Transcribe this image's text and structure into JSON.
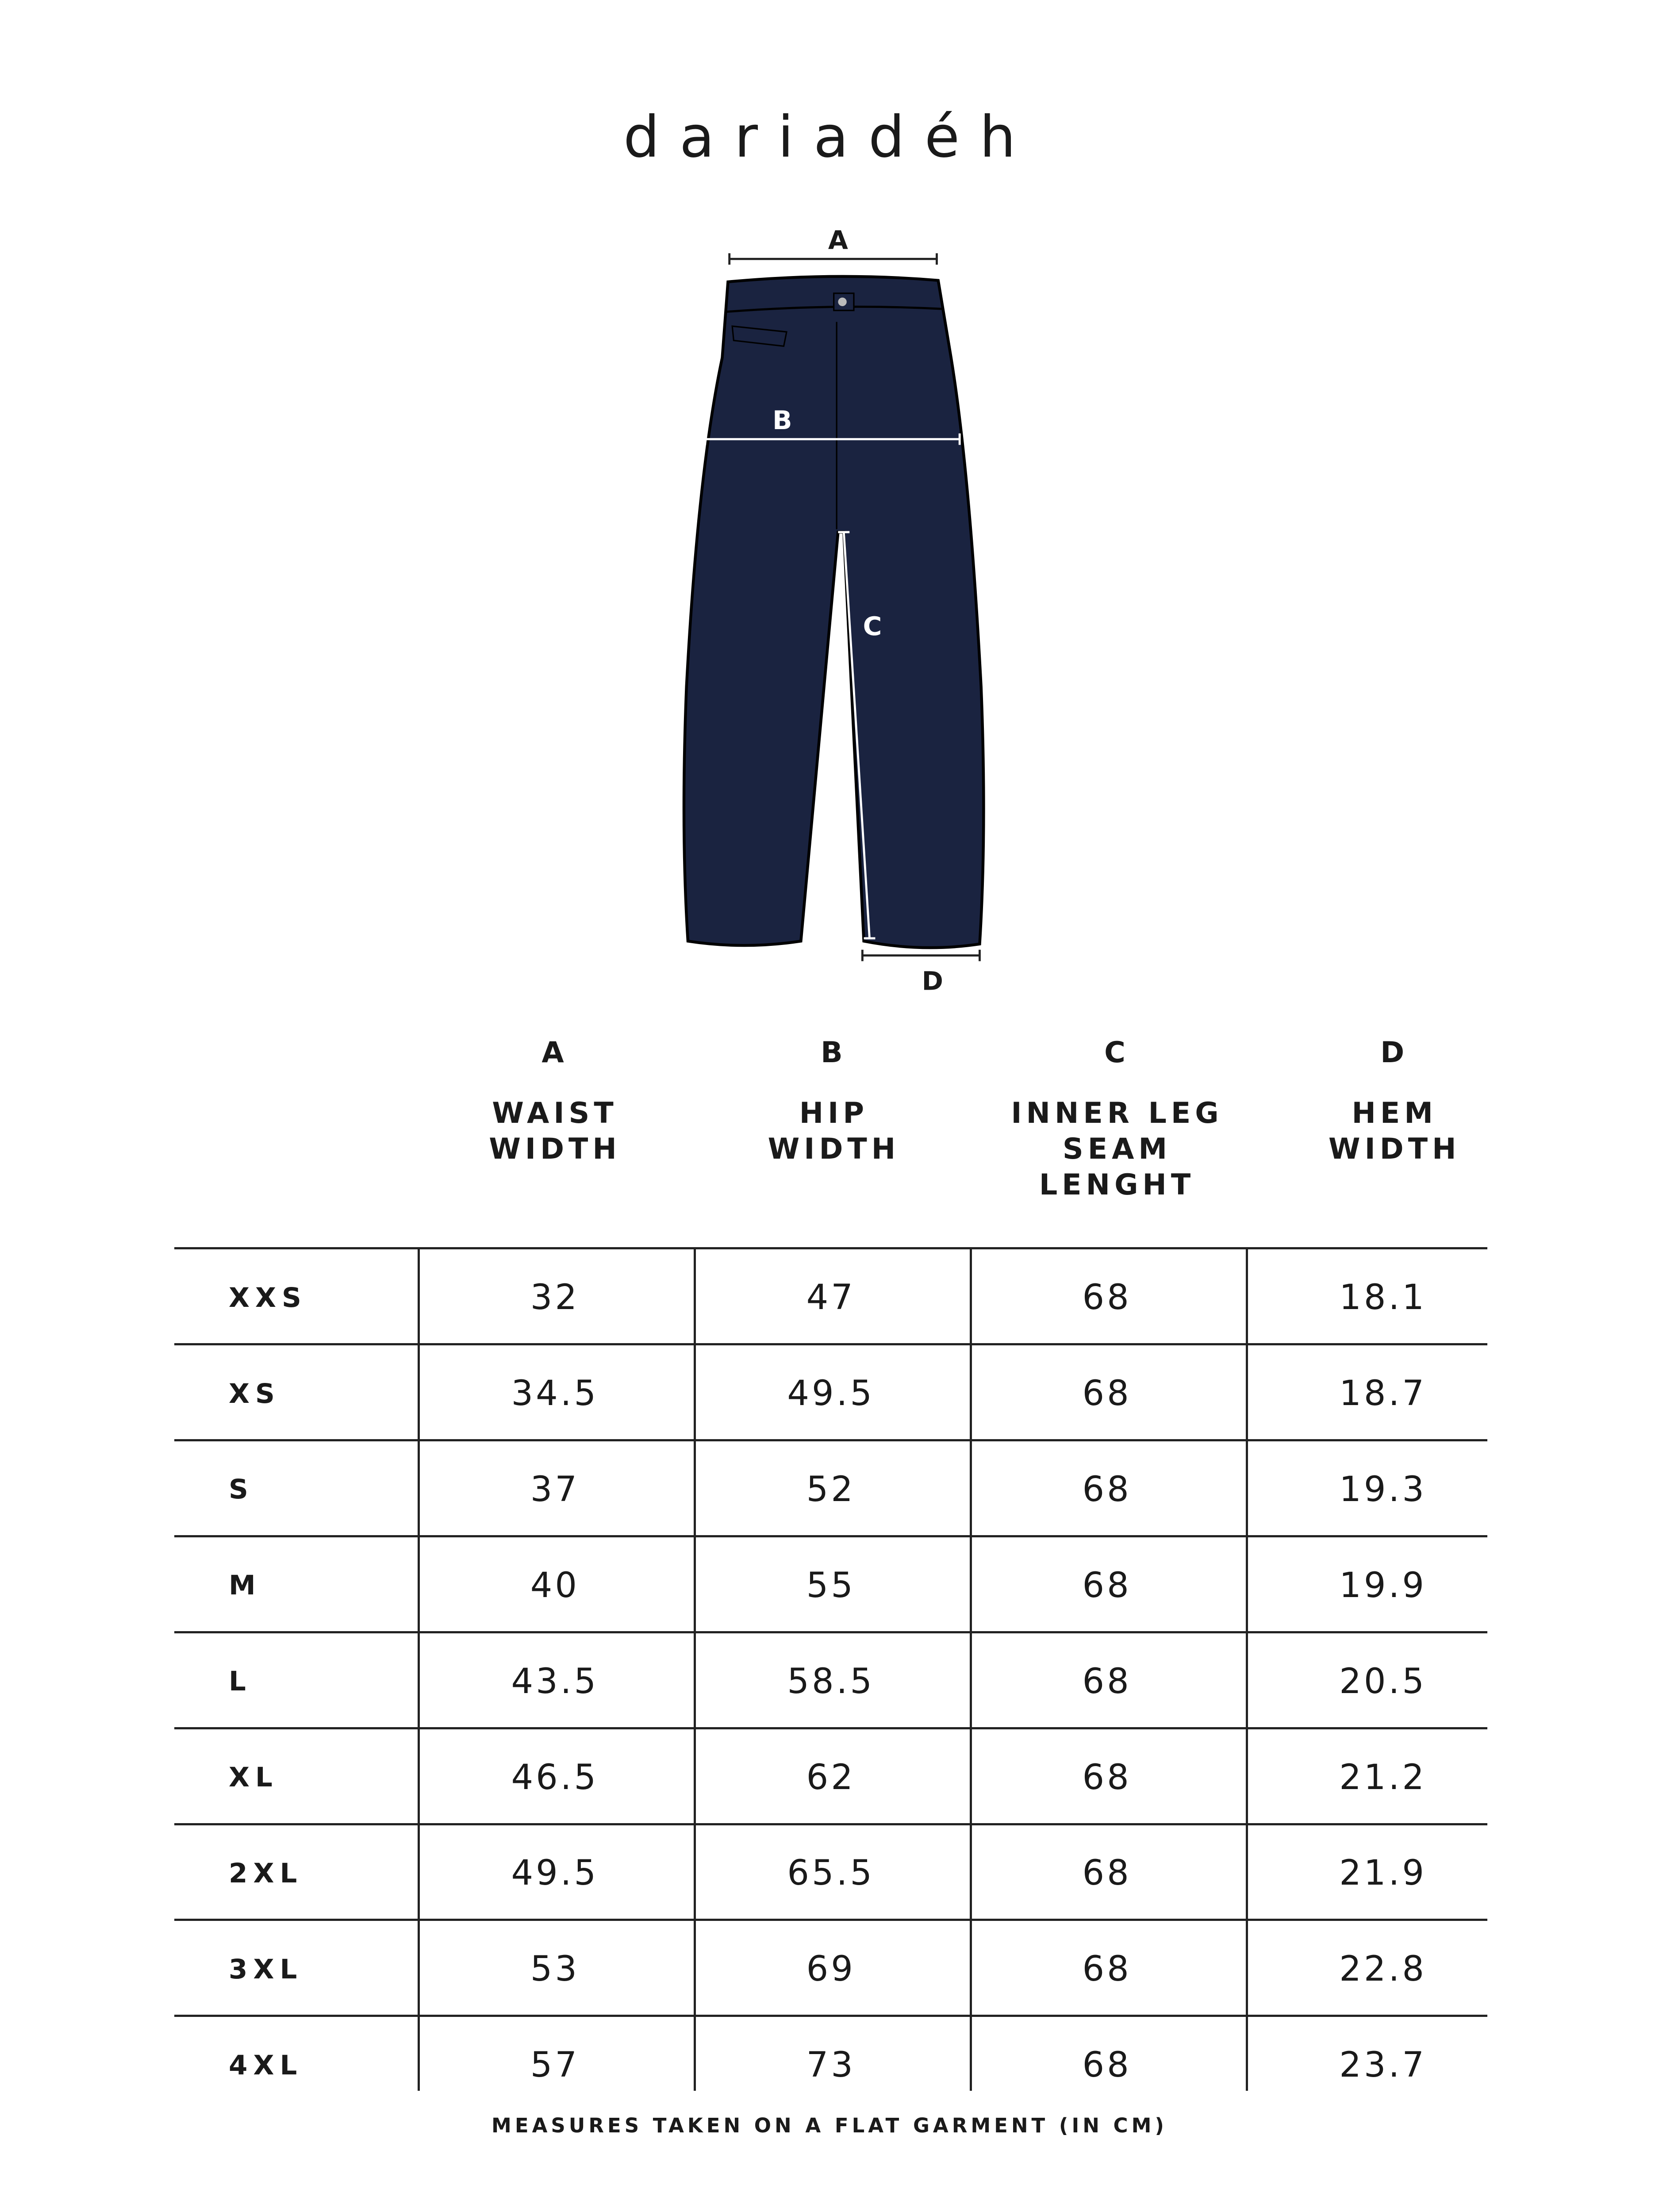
{
  "brand": "dariadéh",
  "diagram": {
    "label_a": "A",
    "label_b": "B",
    "label_c": "C",
    "label_d": "D",
    "garment_color": "#1a2340"
  },
  "columns": [
    {
      "letter": "A",
      "name": [
        "WAIST",
        "WIDTH"
      ]
    },
    {
      "letter": "B",
      "name": [
        "HIP",
        "WIDTH"
      ]
    },
    {
      "letter": "C",
      "name": [
        "INNER LEG",
        "SEAM",
        "LENGHT"
      ]
    },
    {
      "letter": "D",
      "name": [
        "HEM",
        "WIDTH"
      ]
    }
  ],
  "rows": [
    {
      "size": "XXS",
      "values": [
        "32",
        "47",
        "68",
        "18.1"
      ]
    },
    {
      "size": "XS",
      "values": [
        "34.5",
        "49.5",
        "68",
        "18.7"
      ]
    },
    {
      "size": "S",
      "values": [
        "37",
        "52",
        "68",
        "19.3"
      ]
    },
    {
      "size": "M",
      "values": [
        "40",
        "55",
        "68",
        "19.9"
      ]
    },
    {
      "size": "L",
      "values": [
        "43.5",
        "58.5",
        "68",
        "20.5"
      ]
    },
    {
      "size": "XL",
      "values": [
        "46.5",
        "62",
        "68",
        "21.2"
      ]
    },
    {
      "size": "2XL",
      "values": [
        "49.5",
        "65.5",
        "68",
        "21.9"
      ]
    },
    {
      "size": "3XL",
      "values": [
        "53",
        "69",
        "68",
        "22.8"
      ]
    },
    {
      "size": "4XL",
      "values": [
        "57",
        "73",
        "68",
        "23.7"
      ]
    }
  ],
  "caption": "MEASURES TAKEN ON A FLAT GARMENT (IN CM)"
}
